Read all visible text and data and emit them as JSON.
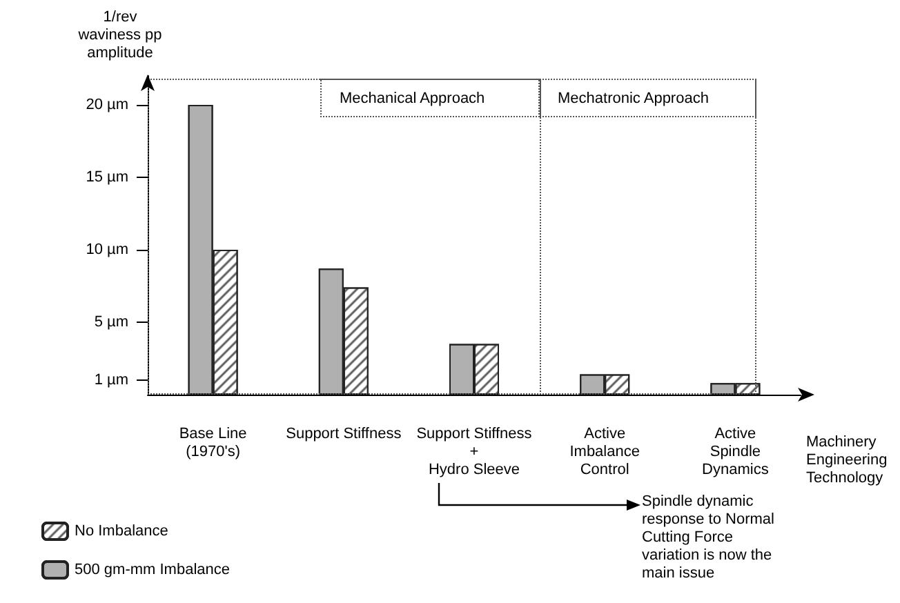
{
  "chart_data": {
    "type": "bar",
    "ylabel": "1/rev\nwaviness pp\namplitude",
    "xlabel": "Machinery\nEngineering\nTechnology",
    "categories": [
      "Base Line\n(1970's)",
      "Support Stiffness",
      "Support Stiffness\n+\nHydro Sleeve",
      "Active\nImbalance\nControl",
      "Active\nSpindle\nDynamics"
    ],
    "series": [
      {
        "name": "500 gm-mm Imbalance",
        "color": "#b0b0b0",
        "values": [
          20,
          8.7,
          3.5,
          1.4,
          0.8
        ]
      },
      {
        "name": "No Imbalance",
        "color": "#ffffff",
        "values": [
          10,
          7.4,
          3.5,
          1.4,
          0.8
        ]
      }
    ],
    "ylim": [
      0,
      22
    ],
    "yticks": [
      {
        "value": 1,
        "label": "1 µm"
      },
      {
        "value": 5,
        "label": "5 µm"
      },
      {
        "value": 10,
        "label": "10 µm"
      },
      {
        "value": 15,
        "label": "15 µm"
      },
      {
        "value": 20,
        "label": "20 µm"
      }
    ],
    "annotations": [
      "Mechanical Approach",
      "Mechatronic Approach",
      "Spindle dynamic\nresponse to Normal\nCutting Force\nvariation is now the\nmain issue"
    ],
    "legend": "bottom left",
    "grid": false
  }
}
